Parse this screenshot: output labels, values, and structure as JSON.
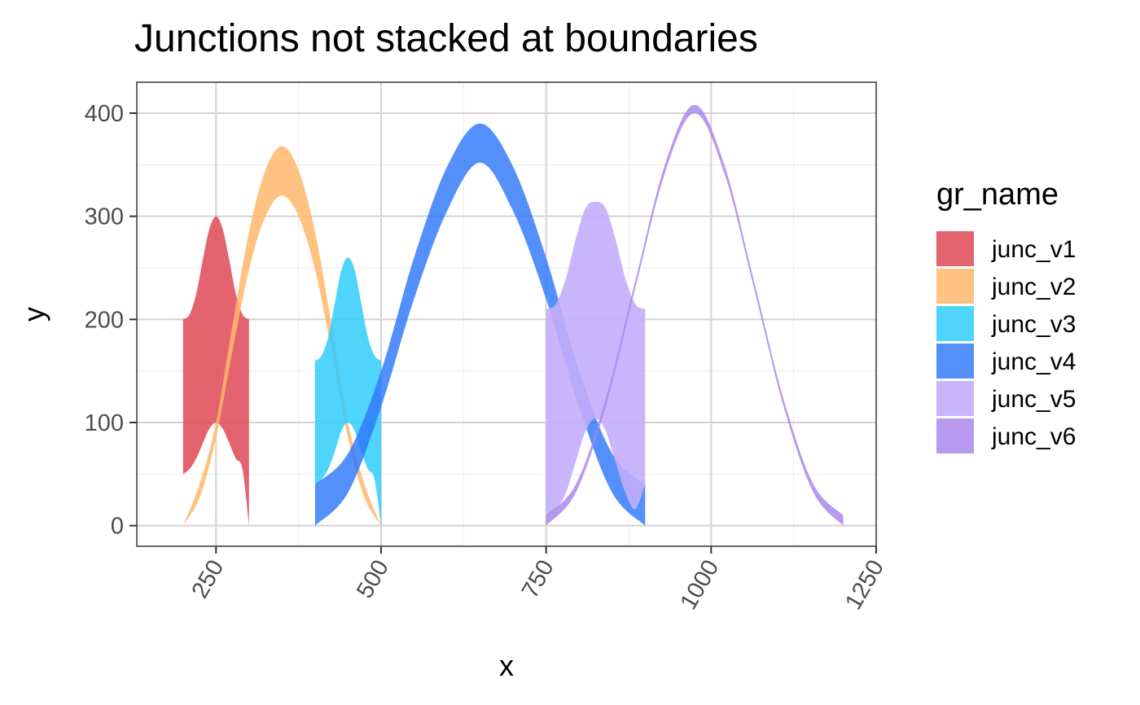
{
  "chart_data": {
    "type": "area",
    "title": "Junctions not stacked at boundaries",
    "xlabel": "x",
    "ylabel": "y",
    "xlim": [
      130,
      1250
    ],
    "ylim": [
      -20,
      430
    ],
    "x_ticks": [
      250,
      500,
      750,
      1000,
      1250
    ],
    "x_tick_labels": [
      "250",
      "500",
      "750",
      "1000",
      "1250"
    ],
    "x_minor": [
      375,
      625,
      875,
      1125
    ],
    "y_ticks": [
      0,
      100,
      200,
      300,
      400
    ],
    "y_tick_labels": [
      "0",
      "100",
      "200",
      "300",
      "400"
    ],
    "y_minor": [
      50,
      150,
      250,
      350
    ],
    "x_tick_label_rotation": "60",
    "grid": true,
    "legend": {
      "title": "gr_name",
      "position": "right"
    },
    "series": [
      {
        "name": "junc_v1",
        "color": "#E0535F",
        "opacity": 0.9,
        "x": [
          200,
          210,
          220,
          230,
          240,
          250,
          260,
          270,
          280,
          290,
          300
        ],
        "ymin": [
          50,
          55,
          65,
          80,
          94,
          100,
          94,
          80,
          65,
          55,
          0
        ],
        "ymax": [
          200,
          205,
          225,
          258,
          288,
          300,
          288,
          258,
          225,
          205,
          200
        ]
      },
      {
        "name": "junc_v2",
        "color": "#FFB76A",
        "opacity": 0.85,
        "x": [
          200,
          225,
          250,
          275,
          300,
          325,
          350,
          375,
          400,
          425,
          450,
          475,
          500
        ],
        "ymin": [
          0,
          27,
          85,
          170,
          248,
          300,
          320,
          300,
          248,
          170,
          85,
          27,
          0
        ],
        "ymax": [
          0,
          40,
          100,
          195,
          285,
          345,
          368,
          345,
          285,
          195,
          100,
          40,
          0
        ]
      },
      {
        "name": "junc_v3",
        "color": "#30CCFC",
        "opacity": 0.85,
        "x": [
          400,
          410,
          420,
          430,
          440,
          450,
          460,
          470,
          480,
          490,
          500
        ],
        "ymin": [
          40,
          45,
          55,
          72,
          92,
          100,
          92,
          72,
          55,
          45,
          0
        ],
        "ymax": [
          160,
          165,
          183,
          216,
          248,
          260,
          248,
          216,
          183,
          165,
          160
        ]
      },
      {
        "name": "junc_v4",
        "color": "#2D78FA",
        "opacity": 0.82,
        "x": [
          400,
          450,
          500,
          550,
          600,
          650,
          700,
          750,
          800,
          850,
          900
        ],
        "ymin": [
          0,
          32,
          115,
          220,
          305,
          352,
          305,
          220,
          115,
          32,
          0
        ],
        "ymax": [
          40,
          70,
          150,
          260,
          348,
          390,
          348,
          260,
          150,
          70,
          40
        ]
      },
      {
        "name": "junc_v5",
        "color": "#C2ADFB",
        "opacity": 0.9,
        "x": [
          750,
          765,
          780,
          795,
          810,
          825,
          840,
          855,
          870,
          885,
          900
        ],
        "ymin": [
          10,
          16,
          32,
          62,
          92,
          104,
          92,
          62,
          32,
          16,
          40
        ],
        "ymax": [
          210,
          215,
          240,
          278,
          308,
          314,
          308,
          278,
          240,
          215,
          210
        ]
      },
      {
        "name": "junc_v6",
        "color": "#A782EB",
        "opacity": 0.82,
        "x": [
          750,
          795,
          840,
          885,
          930,
          975,
          1020,
          1065,
          1110,
          1155,
          1200
        ],
        "ymin": [
          0,
          32,
          115,
          230,
          342,
          400,
          342,
          230,
          115,
          32,
          0
        ],
        "ymax": [
          10,
          40,
          122,
          237,
          350,
          408,
          350,
          237,
          122,
          40,
          10
        ]
      }
    ]
  }
}
